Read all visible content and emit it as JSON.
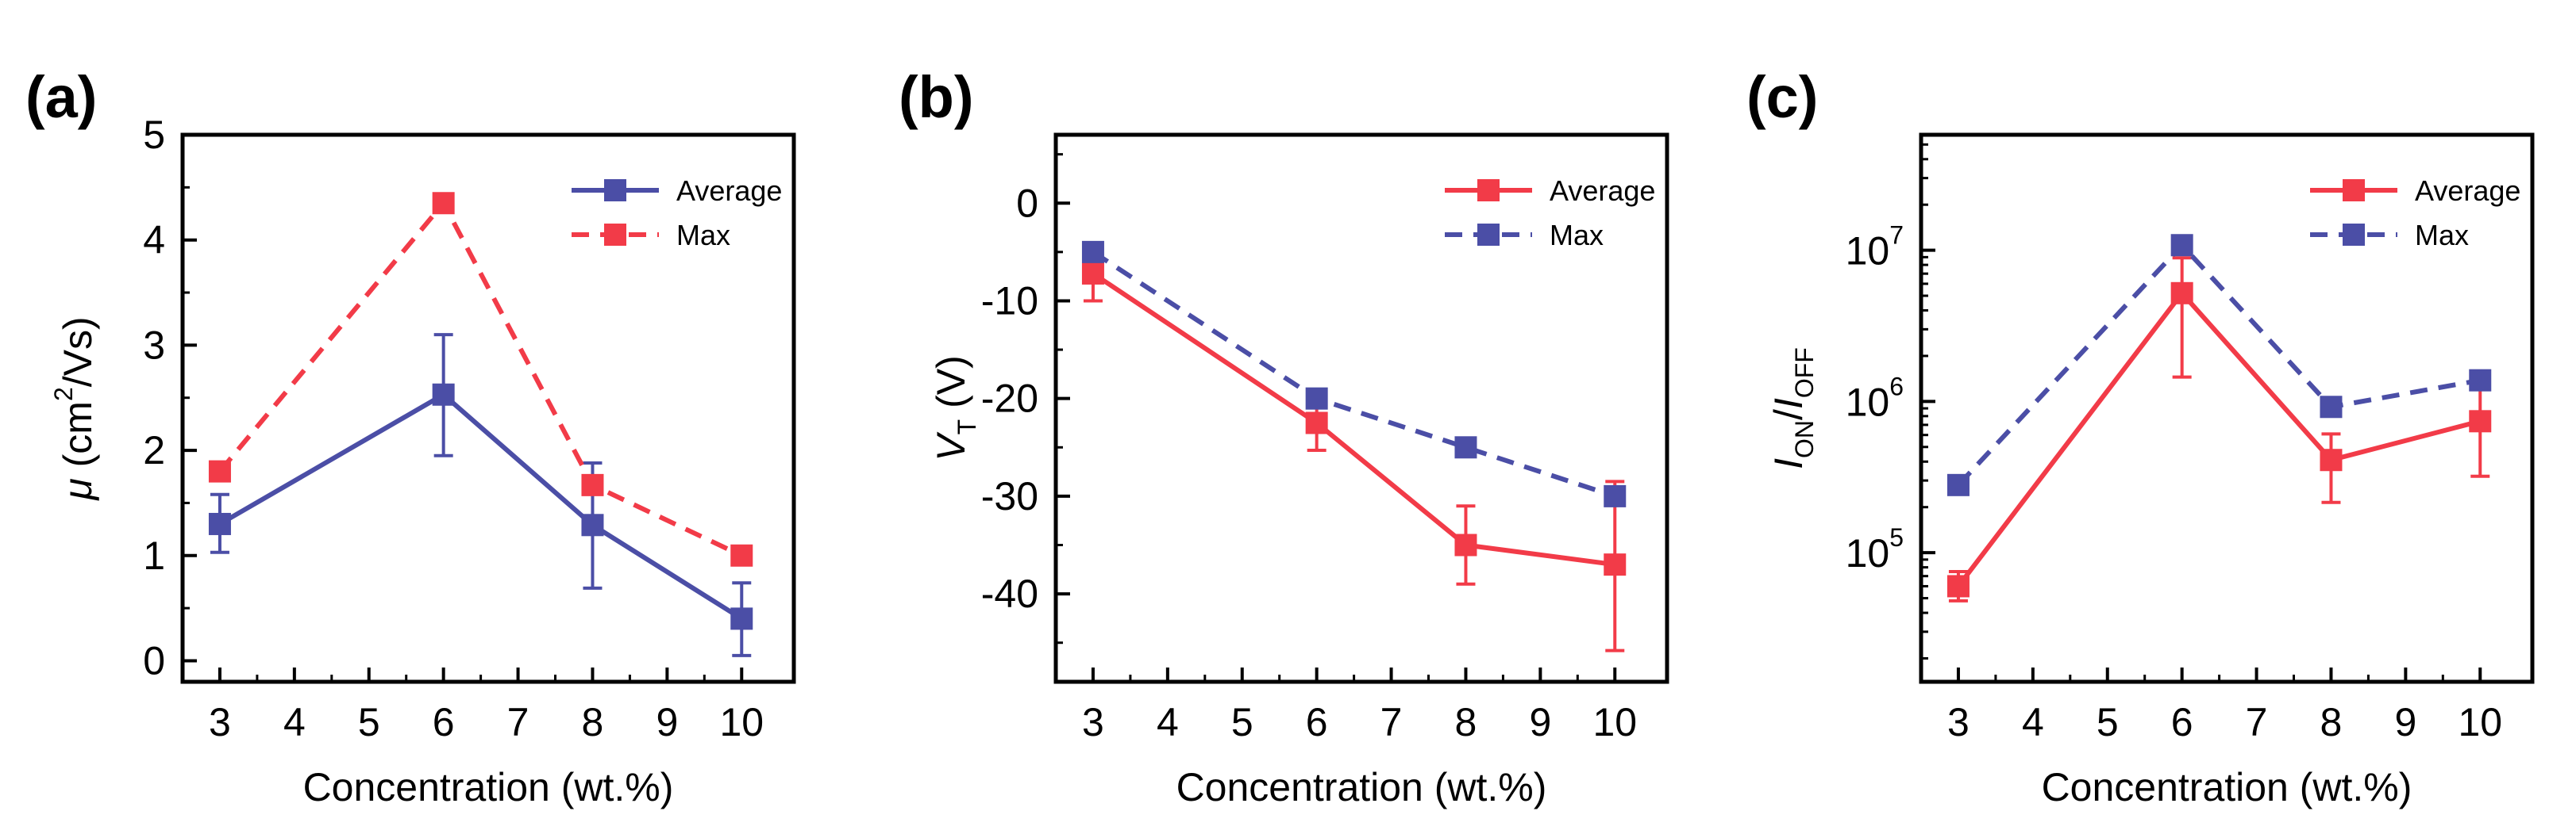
{
  "colors": {
    "blue": "#4B4EA6",
    "red": "#F23B48"
  },
  "chart_data": [
    {
      "panel": "(a)",
      "type": "line",
      "xlabel": "Concentration (wt.%)",
      "ylabel": {
        "symbol": "μ",
        "prefix": "(cm",
        "sup": "2",
        "suffix": "/Vs)"
      },
      "xlim": [
        2.5,
        10.7
      ],
      "ylim": [
        -0.2,
        5
      ],
      "yscale": "linear",
      "xticks": [
        "3",
        "4",
        "5",
        "6",
        "7",
        "8",
        "9",
        "10"
      ],
      "yticks": [
        "0",
        "1",
        "2",
        "3",
        "4",
        "5"
      ],
      "legend": "top-right",
      "series": [
        {
          "name": "Average",
          "color": "blue",
          "dash": false,
          "x": [
            3,
            6,
            8,
            10
          ],
          "y": [
            1.3,
            2.53,
            1.29,
            0.4
          ],
          "err_low": [
            1.03,
            1.95,
            0.69,
            0.05
          ],
          "err_high": [
            1.58,
            3.1,
            1.88,
            0.74
          ]
        },
        {
          "name": "Max",
          "color": "red",
          "dash": true,
          "x": [
            3,
            6,
            8,
            10
          ],
          "y": [
            1.8,
            4.35,
            1.67,
            1.0
          ]
        }
      ]
    },
    {
      "panel": "(b)",
      "type": "line",
      "xlabel": "Concentration (wt.%)",
      "ylabel": {
        "symbol": "V",
        "sub": "T",
        "suffix": " (V)"
      },
      "xlim": [
        2.5,
        10.7
      ],
      "ylim": [
        -49,
        7
      ],
      "yscale": "linear",
      "xticks": [
        "3",
        "4",
        "5",
        "6",
        "7",
        "8",
        "9",
        "10"
      ],
      "yticks": [
        "0",
        "-10",
        "-20",
        "-30",
        "-40"
      ],
      "legend": "top-right",
      "series": [
        {
          "name": "Average",
          "color": "red",
          "dash": false,
          "x": [
            3,
            6,
            8,
            10
          ],
          "y": [
            -7.2,
            -22.5,
            -35,
            -37
          ],
          "err_low": [
            -10,
            -25.3,
            -39,
            -45.8
          ],
          "err_high": [
            -4.6,
            -19.8,
            -31,
            -28.5
          ]
        },
        {
          "name": "Max",
          "color": "blue",
          "dash": true,
          "x": [
            3,
            6,
            8,
            10
          ],
          "y": [
            -5,
            -20,
            -25,
            -30
          ]
        }
      ]
    },
    {
      "panel": "(c)",
      "type": "line",
      "xlabel": "Concentration (wt.%)",
      "ylabel": {
        "main1": "I",
        "sub1": "ON",
        "mid": "/",
        "main2": "I",
        "sub2": "OFF"
      },
      "xlim": [
        2.5,
        10.7
      ],
      "ylim": [
        14000,
        58000000
      ],
      "yscale": "log",
      "xticks": [
        "3",
        "4",
        "5",
        "6",
        "7",
        "8",
        "9",
        "10"
      ],
      "yticks": [
        {
          "value": 100000,
          "base": "10",
          "exp": "5"
        },
        {
          "value": 1000000,
          "base": "10",
          "exp": "6"
        },
        {
          "value": 10000000,
          "base": "10",
          "exp": "7"
        }
      ],
      "legend": "top-right",
      "series": [
        {
          "name": "Average",
          "color": "red",
          "dash": false,
          "x": [
            3,
            6,
            8,
            10
          ],
          "y": [
            60000,
            5200000,
            410000,
            740000
          ],
          "err_low": [
            48000,
            1450000,
            215000,
            320000
          ],
          "err_high": [
            75000,
            8900000,
            610000,
            1230000
          ]
        },
        {
          "name": "Max",
          "color": "blue",
          "dash": true,
          "x": [
            3,
            6,
            8,
            10
          ],
          "y": [
            280000,
            10800000,
            920000,
            1380000
          ]
        }
      ]
    }
  ]
}
